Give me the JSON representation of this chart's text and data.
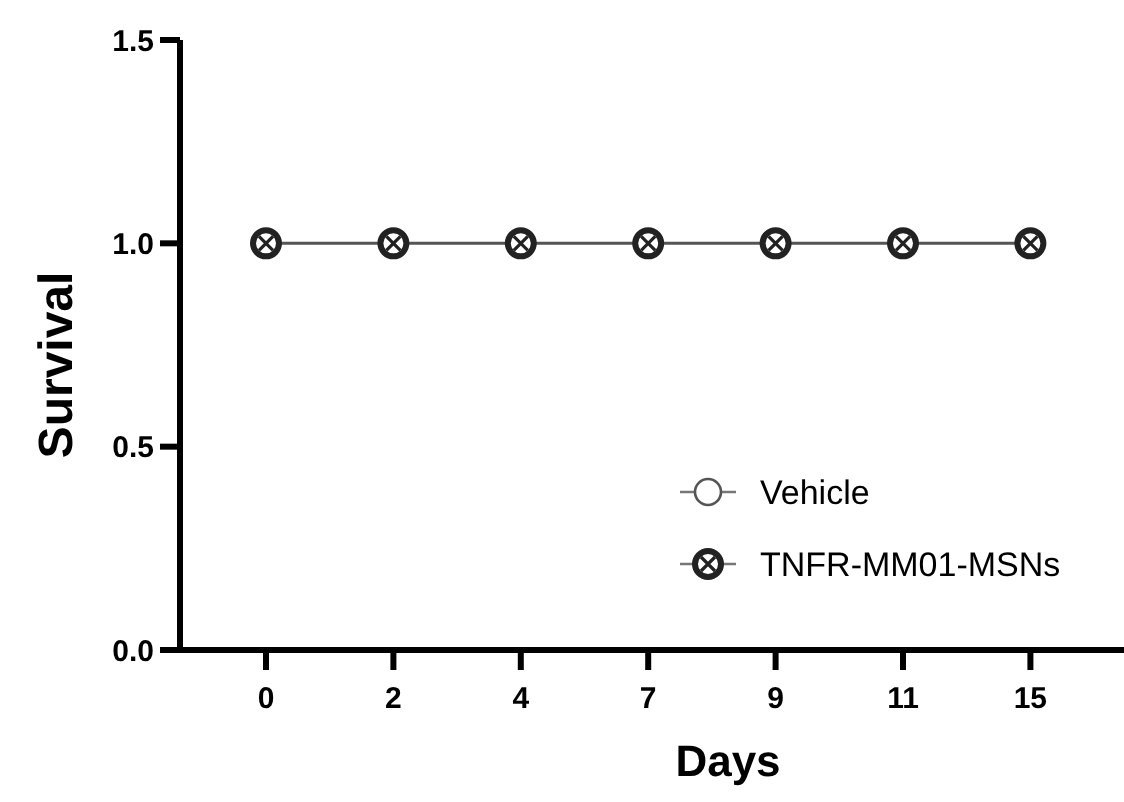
{
  "chart_data": {
    "type": "line",
    "xlabel": "Days",
    "ylabel": "Survival",
    "categories": [
      "0",
      "2",
      "4",
      "7",
      "9",
      "11",
      "15"
    ],
    "ylim": [
      0,
      1.5
    ],
    "yticks": [
      {
        "value": 0,
        "label": "0.0"
      },
      {
        "value": 0.5,
        "label": "0.5"
      },
      {
        "value": 1,
        "label": "1.0"
      },
      {
        "value": 1.5,
        "label": "1.5"
      }
    ],
    "series": [
      {
        "name": "Vehicle",
        "color": "#555555",
        "marker": "circle",
        "values": [
          null,
          null,
          null,
          null,
          null,
          null,
          null
        ]
      },
      {
        "name": "TNFR-MM01-MSNs",
        "color": "#222222",
        "marker": "circle",
        "values": [
          1,
          1,
          1,
          1,
          1,
          1,
          1
        ]
      }
    ],
    "legend": "bottom right",
    "grid": false
  }
}
